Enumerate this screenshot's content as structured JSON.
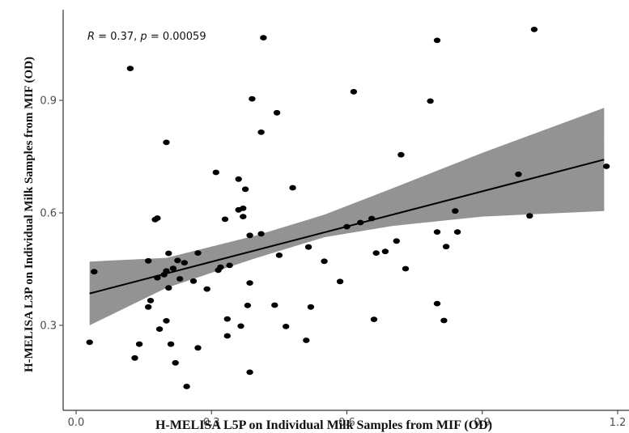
{
  "chart_data": {
    "type": "scatter",
    "xlabel": "H-MELISA L5P on Individual Milk Samples from MIF (OD)",
    "ylabel": "H-MELISA L3P on Individual Milk Samples from MIF (OD)",
    "xlim": [
      -0.02,
      1.21
    ],
    "ylim": [
      0.11,
      1.11
    ],
    "x_ticks": [
      0.0,
      0.3,
      0.6,
      0.9,
      1.2
    ],
    "x_tick_labels": [
      "0.0",
      "0.3",
      "0.6",
      "0.9",
      "1.2"
    ],
    "y_ticks": [
      0.3,
      0.6,
      0.9
    ],
    "y_tick_labels": [
      "0.3",
      "0.6",
      "0.9"
    ],
    "grid": false,
    "annotation": {
      "r_symbol": "R",
      "r_text": " = 0.37, ",
      "p_symbol": "p",
      "p_text": " = 0.00059"
    },
    "colors": {
      "points": "#000000",
      "fit_line": "#000000",
      "confidence_band": "#808080",
      "axis": "#333333"
    },
    "fit": {
      "x_start": 0.03,
      "y_start": 0.385,
      "x_end": 1.17,
      "y_end": 0.742,
      "band": [
        {
          "x": 0.03,
          "lo": 0.3,
          "hi": 0.47
        },
        {
          "x": 0.2,
          "lo": 0.4,
          "hi": 0.48
        },
        {
          "x": 0.4,
          "lo": 0.48,
          "hi": 0.54
        },
        {
          "x": 0.55,
          "lo": 0.535,
          "hi": 0.595
        },
        {
          "x": 0.7,
          "lo": 0.565,
          "hi": 0.665
        },
        {
          "x": 0.9,
          "lo": 0.59,
          "hi": 0.76
        },
        {
          "x": 1.17,
          "lo": 0.605,
          "hi": 0.88
        }
      ]
    },
    "points": [
      {
        "x": 0.03,
        "y": 0.255
      },
      {
        "x": 0.04,
        "y": 0.443
      },
      {
        "x": 0.12,
        "y": 0.985
      },
      {
        "x": 0.13,
        "y": 0.213
      },
      {
        "x": 0.14,
        "y": 0.25
      },
      {
        "x": 0.16,
        "y": 0.472
      },
      {
        "x": 0.16,
        "y": 0.349
      },
      {
        "x": 0.165,
        "y": 0.366
      },
      {
        "x": 0.175,
        "y": 0.582
      },
      {
        "x": 0.18,
        "y": 0.586
      },
      {
        "x": 0.18,
        "y": 0.427
      },
      {
        "x": 0.185,
        "y": 0.29
      },
      {
        "x": 0.195,
        "y": 0.435
      },
      {
        "x": 0.2,
        "y": 0.312
      },
      {
        "x": 0.2,
        "y": 0.788
      },
      {
        "x": 0.2,
        "y": 0.445
      },
      {
        "x": 0.205,
        "y": 0.492
      },
      {
        "x": 0.205,
        "y": 0.4
      },
      {
        "x": 0.21,
        "y": 0.25
      },
      {
        "x": 0.215,
        "y": 0.452
      },
      {
        "x": 0.22,
        "y": 0.2
      },
      {
        "x": 0.225,
        "y": 0.473
      },
      {
        "x": 0.23,
        "y": 0.424
      },
      {
        "x": 0.24,
        "y": 0.467
      },
      {
        "x": 0.245,
        "y": 0.137
      },
      {
        "x": 0.26,
        "y": 0.418
      },
      {
        "x": 0.27,
        "y": 0.493
      },
      {
        "x": 0.27,
        "y": 0.24
      },
      {
        "x": 0.29,
        "y": 0.397
      },
      {
        "x": 0.31,
        "y": 0.708
      },
      {
        "x": 0.315,
        "y": 0.447
      },
      {
        "x": 0.32,
        "y": 0.455
      },
      {
        "x": 0.33,
        "y": 0.583
      },
      {
        "x": 0.335,
        "y": 0.317
      },
      {
        "x": 0.335,
        "y": 0.272
      },
      {
        "x": 0.34,
        "y": 0.46
      },
      {
        "x": 0.36,
        "y": 0.69
      },
      {
        "x": 0.36,
        "y": 0.608
      },
      {
        "x": 0.365,
        "y": 0.298
      },
      {
        "x": 0.37,
        "y": 0.612
      },
      {
        "x": 0.37,
        "y": 0.59
      },
      {
        "x": 0.375,
        "y": 0.663
      },
      {
        "x": 0.38,
        "y": 0.353
      },
      {
        "x": 0.385,
        "y": 0.413
      },
      {
        "x": 0.385,
        "y": 0.54
      },
      {
        "x": 0.385,
        "y": 0.175
      },
      {
        "x": 0.39,
        "y": 0.904
      },
      {
        "x": 0.41,
        "y": 0.544
      },
      {
        "x": 0.41,
        "y": 0.815
      },
      {
        "x": 0.415,
        "y": 1.067
      },
      {
        "x": 0.44,
        "y": 0.354
      },
      {
        "x": 0.445,
        "y": 0.867
      },
      {
        "x": 0.45,
        "y": 0.487
      },
      {
        "x": 0.465,
        "y": 0.297
      },
      {
        "x": 0.48,
        "y": 0.667
      },
      {
        "x": 0.51,
        "y": 0.26
      },
      {
        "x": 0.515,
        "y": 0.509
      },
      {
        "x": 0.52,
        "y": 0.349
      },
      {
        "x": 0.55,
        "y": 0.471
      },
      {
        "x": 0.585,
        "y": 0.417
      },
      {
        "x": 0.6,
        "y": 0.563
      },
      {
        "x": 0.615,
        "y": 0.923
      },
      {
        "x": 0.63,
        "y": 0.574
      },
      {
        "x": 0.655,
        "y": 0.585
      },
      {
        "x": 0.66,
        "y": 0.316
      },
      {
        "x": 0.665,
        "y": 0.493
      },
      {
        "x": 0.685,
        "y": 0.497
      },
      {
        "x": 0.71,
        "y": 0.525
      },
      {
        "x": 0.72,
        "y": 0.755
      },
      {
        "x": 0.73,
        "y": 0.451
      },
      {
        "x": 0.785,
        "y": 0.898
      },
      {
        "x": 0.8,
        "y": 1.06
      },
      {
        "x": 0.8,
        "y": 0.358
      },
      {
        "x": 0.8,
        "y": 0.549
      },
      {
        "x": 0.815,
        "y": 0.313
      },
      {
        "x": 0.82,
        "y": 0.51
      },
      {
        "x": 0.84,
        "y": 0.605
      },
      {
        "x": 0.845,
        "y": 0.549
      },
      {
        "x": 0.98,
        "y": 0.703
      },
      {
        "x": 1.005,
        "y": 0.592
      },
      {
        "x": 1.015,
        "y": 1.089
      },
      {
        "x": 1.175,
        "y": 0.724
      }
    ]
  }
}
